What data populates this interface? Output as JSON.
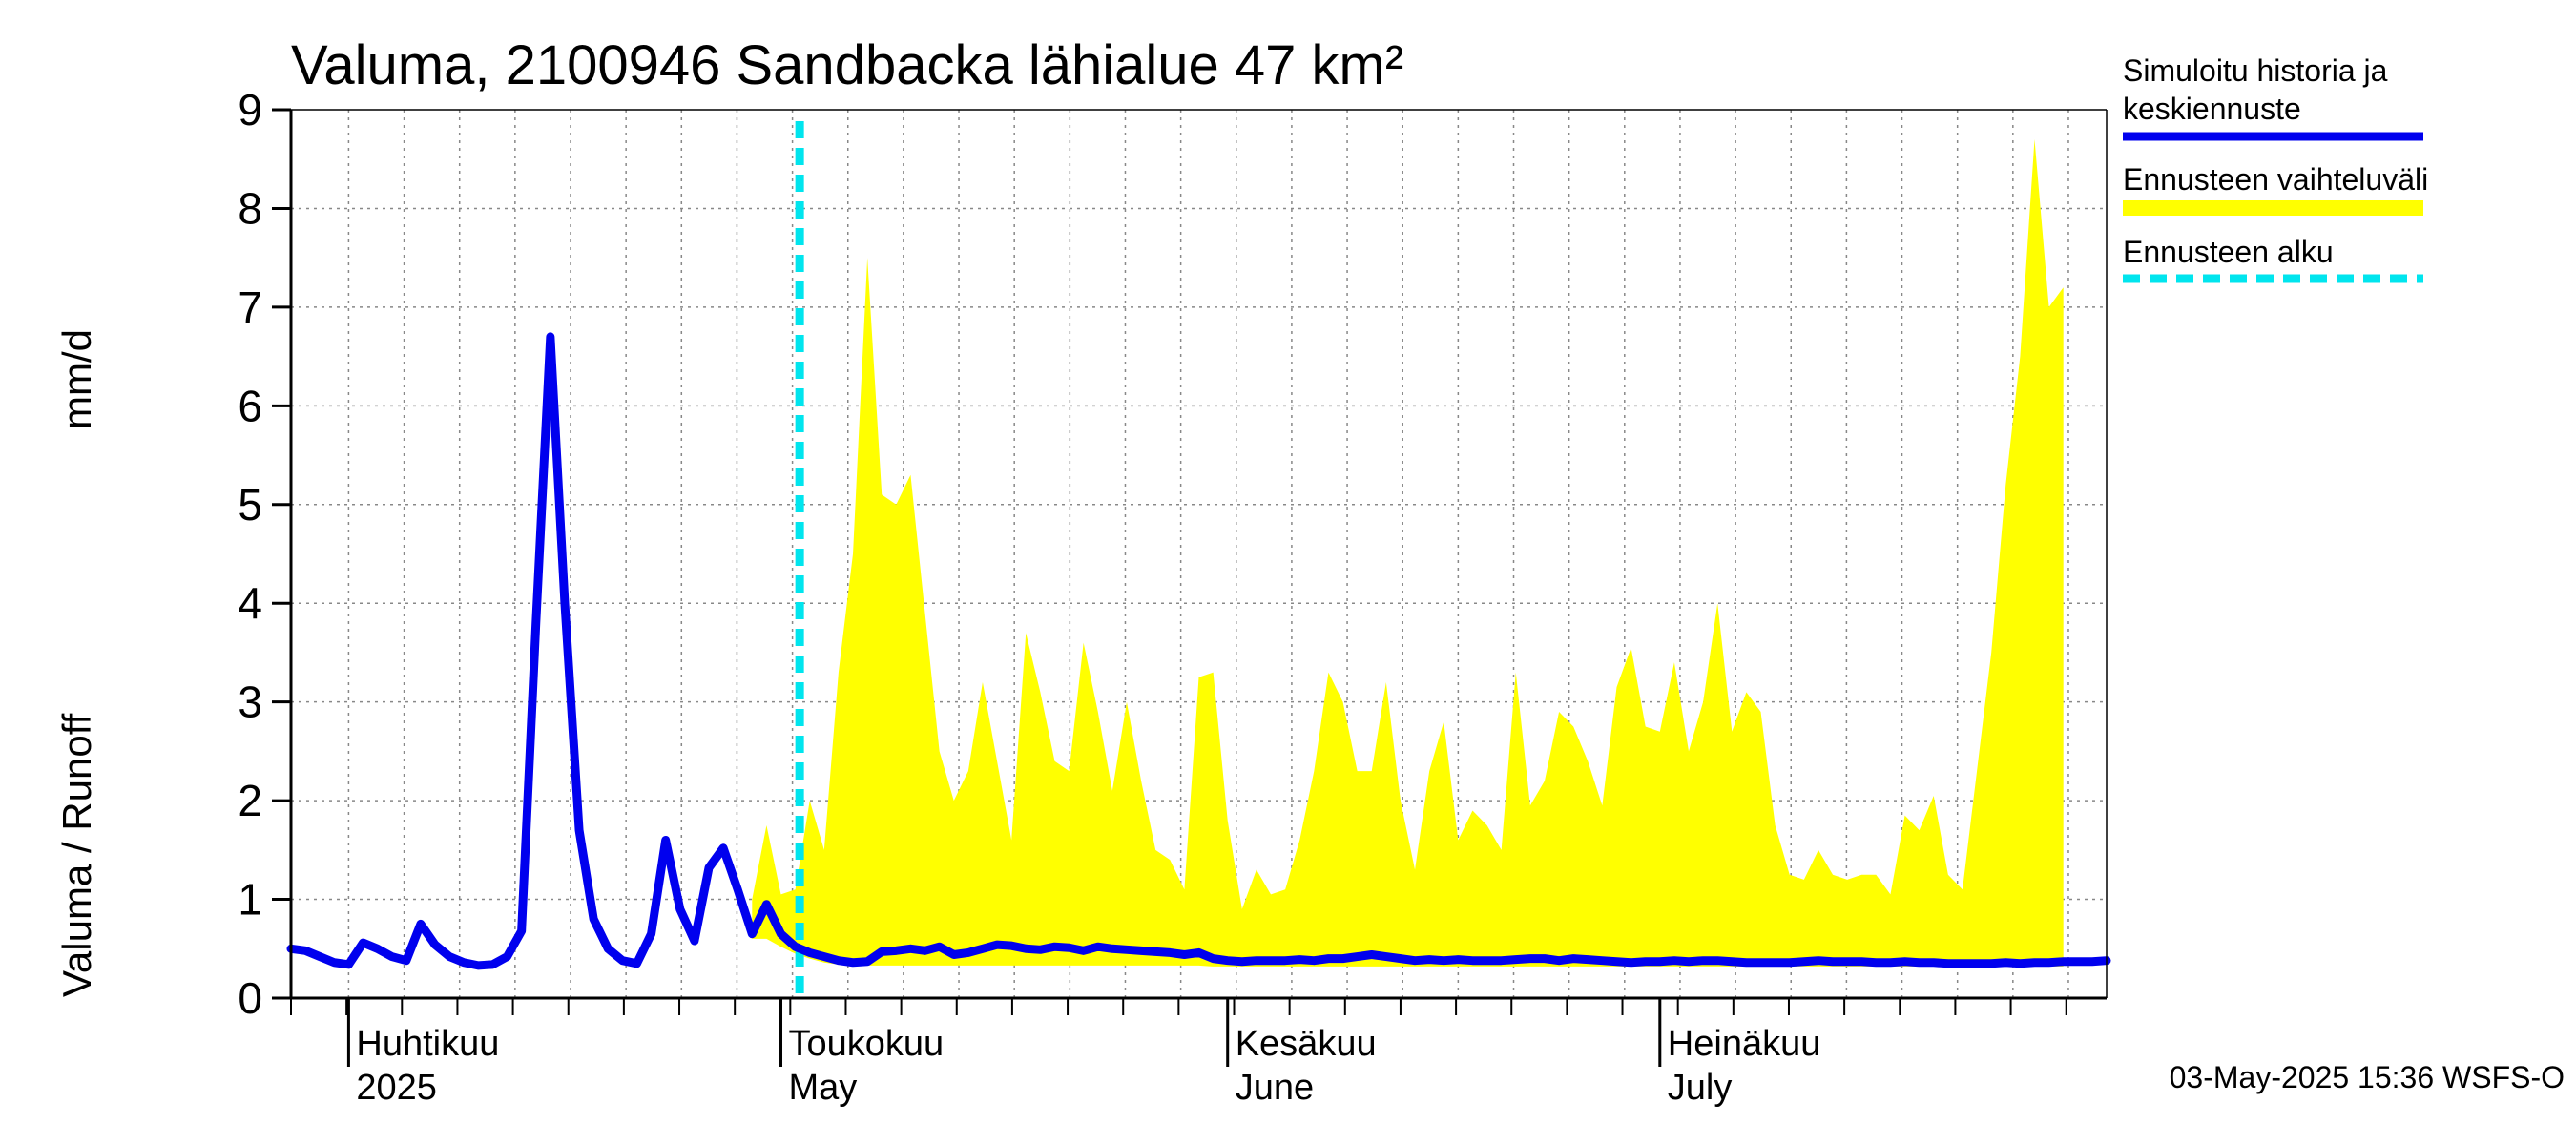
{
  "chart_data": {
    "type": "area",
    "title": "Valuma, 2100946 Sandbacka lähialue 47 km²",
    "ylabel_left": "Valuma / Runoff",
    "ylabel_right": "mm/d",
    "ylim": [
      0,
      9
    ],
    "yticks": [
      "0",
      "1",
      "2",
      "3",
      "4",
      "5",
      "6",
      "7",
      "8",
      "9"
    ],
    "x_range_days": [
      0,
      126
    ],
    "x_start_date": "2025-03-28",
    "months": [
      {
        "day": 4,
        "line1": "Huhtikuu",
        "line2": "2025"
      },
      {
        "day": 34,
        "line1": "Toukokuu",
        "line2": "May"
      },
      {
        "day": 65,
        "line1": "Kesäkuu",
        "line2": "June"
      },
      {
        "day": 95,
        "line1": "Heinäkuu",
        "line2": "July"
      }
    ],
    "forecast_start_day": 35.3,
    "simulated": {
      "name": "Simuloitu historia ja keskiennuste",
      "color": "#0000ee",
      "points": [
        [
          0,
          0.5
        ],
        [
          1,
          0.48
        ],
        [
          2,
          0.42
        ],
        [
          3,
          0.36
        ],
        [
          4,
          0.34
        ],
        [
          5,
          0.56
        ],
        [
          6,
          0.5
        ],
        [
          7,
          0.42
        ],
        [
          8,
          0.38
        ],
        [
          9,
          0.75
        ],
        [
          10,
          0.54
        ],
        [
          11,
          0.42
        ],
        [
          12,
          0.36
        ],
        [
          13,
          0.33
        ],
        [
          14,
          0.34
        ],
        [
          15,
          0.42
        ],
        [
          16,
          0.68
        ],
        [
          17,
          3.8
        ],
        [
          18,
          6.7
        ],
        [
          19,
          4.0
        ],
        [
          20,
          1.7
        ],
        [
          21,
          0.8
        ],
        [
          22,
          0.5
        ],
        [
          23,
          0.38
        ],
        [
          24,
          0.35
        ],
        [
          25,
          0.65
        ],
        [
          26,
          1.6
        ],
        [
          27,
          0.9
        ],
        [
          28,
          0.58
        ],
        [
          29,
          1.32
        ],
        [
          30,
          1.52
        ],
        [
          31,
          1.1
        ],
        [
          32,
          0.65
        ],
        [
          33,
          0.95
        ],
        [
          34,
          0.65
        ],
        [
          35,
          0.52
        ],
        [
          36,
          0.46
        ],
        [
          37,
          0.42
        ],
        [
          38,
          0.38
        ],
        [
          39,
          0.36
        ],
        [
          40,
          0.37
        ],
        [
          41,
          0.47
        ],
        [
          42,
          0.48
        ],
        [
          43,
          0.5
        ],
        [
          44,
          0.48
        ],
        [
          45,
          0.52
        ],
        [
          46,
          0.44
        ],
        [
          47,
          0.46
        ],
        [
          48,
          0.5
        ],
        [
          49,
          0.54
        ],
        [
          50,
          0.53
        ],
        [
          51,
          0.5
        ],
        [
          52,
          0.49
        ],
        [
          53,
          0.52
        ],
        [
          54,
          0.51
        ],
        [
          55,
          0.48
        ],
        [
          56,
          0.52
        ],
        [
          57,
          0.5
        ],
        [
          58,
          0.49
        ],
        [
          59,
          0.48
        ],
        [
          60,
          0.47
        ],
        [
          61,
          0.46
        ],
        [
          62,
          0.44
        ],
        [
          63,
          0.46
        ],
        [
          64,
          0.4
        ],
        [
          65,
          0.38
        ],
        [
          66,
          0.37
        ],
        [
          67,
          0.38
        ],
        [
          68,
          0.38
        ],
        [
          69,
          0.38
        ],
        [
          70,
          0.39
        ],
        [
          71,
          0.38
        ],
        [
          72,
          0.4
        ],
        [
          73,
          0.4
        ],
        [
          74,
          0.42
        ],
        [
          75,
          0.44
        ],
        [
          76,
          0.42
        ],
        [
          77,
          0.4
        ],
        [
          78,
          0.38
        ],
        [
          79,
          0.39
        ],
        [
          80,
          0.38
        ],
        [
          81,
          0.39
        ],
        [
          82,
          0.38
        ],
        [
          83,
          0.38
        ],
        [
          84,
          0.38
        ],
        [
          85,
          0.39
        ],
        [
          86,
          0.4
        ],
        [
          87,
          0.4
        ],
        [
          88,
          0.38
        ],
        [
          89,
          0.4
        ],
        [
          90,
          0.39
        ],
        [
          91,
          0.38
        ],
        [
          92,
          0.37
        ],
        [
          93,
          0.36
        ],
        [
          94,
          0.37
        ],
        [
          95,
          0.37
        ],
        [
          96,
          0.38
        ],
        [
          97,
          0.37
        ],
        [
          98,
          0.38
        ],
        [
          99,
          0.38
        ],
        [
          100,
          0.37
        ],
        [
          101,
          0.36
        ],
        [
          102,
          0.36
        ],
        [
          103,
          0.36
        ],
        [
          104,
          0.36
        ],
        [
          105,
          0.37
        ],
        [
          106,
          0.38
        ],
        [
          107,
          0.37
        ],
        [
          108,
          0.37
        ],
        [
          109,
          0.37
        ],
        [
          110,
          0.36
        ],
        [
          111,
          0.36
        ],
        [
          112,
          0.37
        ],
        [
          113,
          0.36
        ],
        [
          114,
          0.36
        ],
        [
          115,
          0.35
        ],
        [
          116,
          0.35
        ],
        [
          117,
          0.35
        ],
        [
          118,
          0.35
        ],
        [
          119,
          0.36
        ],
        [
          120,
          0.35
        ],
        [
          121,
          0.36
        ],
        [
          122,
          0.36
        ],
        [
          123,
          0.37
        ],
        [
          124,
          0.37
        ],
        [
          125,
          0.37
        ],
        [
          126,
          0.38
        ]
      ]
    },
    "range": {
      "name": "Ennusteen vaihteluväli",
      "color": "#ffff00",
      "upper": [
        [
          32,
          1.0
        ],
        [
          33,
          1.75
        ],
        [
          34,
          1.05
        ],
        [
          35,
          1.1
        ],
        [
          36,
          2.0
        ],
        [
          37,
          1.5
        ],
        [
          38,
          3.3
        ],
        [
          39,
          4.5
        ],
        [
          40,
          7.5
        ],
        [
          41,
          5.1
        ],
        [
          42,
          5.0
        ],
        [
          43,
          5.3
        ],
        [
          44,
          3.9
        ],
        [
          45,
          2.5
        ],
        [
          46,
          2.0
        ],
        [
          47,
          2.3
        ],
        [
          48,
          3.2
        ],
        [
          49,
          2.4
        ],
        [
          50,
          1.6
        ],
        [
          51,
          3.7
        ],
        [
          52,
          3.1
        ],
        [
          53,
          2.4
        ],
        [
          54,
          2.3
        ],
        [
          55,
          3.6
        ],
        [
          56,
          2.9
        ],
        [
          57,
          2.1
        ],
        [
          58,
          3.0
        ],
        [
          59,
          2.2
        ],
        [
          60,
          1.5
        ],
        [
          61,
          1.4
        ],
        [
          62,
          1.1
        ],
        [
          63,
          3.25
        ],
        [
          64,
          3.3
        ],
        [
          65,
          1.8
        ],
        [
          66,
          0.9
        ],
        [
          67,
          1.3
        ],
        [
          68,
          1.05
        ],
        [
          69,
          1.1
        ],
        [
          70,
          1.6
        ],
        [
          71,
          2.3
        ],
        [
          72,
          3.3
        ],
        [
          73,
          3.0
        ],
        [
          74,
          2.3
        ],
        [
          75,
          2.3
        ],
        [
          76,
          3.2
        ],
        [
          77,
          2.0
        ],
        [
          78,
          1.3
        ],
        [
          79,
          2.3
        ],
        [
          80,
          2.8
        ],
        [
          81,
          1.6
        ],
        [
          82,
          1.9
        ],
        [
          83,
          1.75
        ],
        [
          84,
          1.5
        ],
        [
          85,
          3.3
        ],
        [
          86,
          1.95
        ],
        [
          87,
          2.2
        ],
        [
          88,
          2.9
        ],
        [
          89,
          2.75
        ],
        [
          90,
          2.4
        ],
        [
          91,
          1.95
        ],
        [
          92,
          3.15
        ],
        [
          93,
          3.55
        ],
        [
          94,
          2.75
        ],
        [
          95,
          2.7
        ],
        [
          96,
          3.4
        ],
        [
          97,
          2.5
        ],
        [
          98,
          3.0
        ],
        [
          99,
          4.0
        ],
        [
          100,
          2.7
        ],
        [
          101,
          3.1
        ],
        [
          102,
          2.9
        ],
        [
          103,
          1.75
        ],
        [
          104,
          1.25
        ],
        [
          105,
          1.2
        ],
        [
          106,
          1.5
        ],
        [
          107,
          1.25
        ],
        [
          108,
          1.2
        ],
        [
          109,
          1.25
        ],
        [
          110,
          1.25
        ],
        [
          111,
          1.05
        ],
        [
          112,
          1.85
        ],
        [
          113,
          1.7
        ],
        [
          114,
          2.05
        ],
        [
          115,
          1.25
        ],
        [
          116,
          1.1
        ],
        [
          117,
          2.3
        ],
        [
          118,
          3.5
        ],
        [
          119,
          5.2
        ],
        [
          120,
          6.5
        ],
        [
          121,
          8.7
        ],
        [
          122,
          7.0
        ],
        [
          123,
          7.2
        ]
      ],
      "lower": [
        [
          32,
          0.6
        ],
        [
          33,
          0.6
        ],
        [
          34,
          0.52
        ],
        [
          35,
          0.45
        ],
        [
          36,
          0.4
        ],
        [
          37,
          0.36
        ],
        [
          38,
          0.34
        ],
        [
          39,
          0.33
        ],
        [
          40,
          0.33
        ],
        [
          41,
          0.33
        ],
        [
          42,
          0.33
        ],
        [
          43,
          0.33
        ],
        [
          44,
          0.33
        ],
        [
          45,
          0.33
        ],
        [
          46,
          0.33
        ],
        [
          47,
          0.33
        ],
        [
          48,
          0.33
        ],
        [
          49,
          0.33
        ],
        [
          50,
          0.33
        ],
        [
          51,
          0.33
        ],
        [
          52,
          0.33
        ],
        [
          53,
          0.33
        ],
        [
          54,
          0.33
        ],
        [
          55,
          0.33
        ],
        [
          56,
          0.33
        ],
        [
          57,
          0.33
        ],
        [
          58,
          0.33
        ],
        [
          59,
          0.33
        ],
        [
          60,
          0.33
        ],
        [
          61,
          0.33
        ],
        [
          62,
          0.33
        ],
        [
          63,
          0.33
        ],
        [
          64,
          0.32
        ],
        [
          65,
          0.32
        ],
        [
          66,
          0.32
        ],
        [
          67,
          0.32
        ],
        [
          68,
          0.32
        ],
        [
          69,
          0.32
        ],
        [
          70,
          0.32
        ],
        [
          71,
          0.32
        ],
        [
          72,
          0.32
        ],
        [
          73,
          0.32
        ],
        [
          74,
          0.32
        ],
        [
          75,
          0.32
        ],
        [
          76,
          0.32
        ],
        [
          77,
          0.32
        ],
        [
          78,
          0.32
        ],
        [
          79,
          0.32
        ],
        [
          80,
          0.32
        ],
        [
          81,
          0.32
        ],
        [
          82,
          0.32
        ],
        [
          83,
          0.32
        ],
        [
          84,
          0.32
        ],
        [
          85,
          0.32
        ],
        [
          86,
          0.32
        ],
        [
          87,
          0.32
        ],
        [
          88,
          0.32
        ],
        [
          89,
          0.32
        ],
        [
          90,
          0.32
        ],
        [
          91,
          0.32
        ],
        [
          92,
          0.32
        ],
        [
          93,
          0.32
        ],
        [
          94,
          0.32
        ],
        [
          95,
          0.32
        ],
        [
          96,
          0.32
        ],
        [
          97,
          0.32
        ],
        [
          98,
          0.32
        ],
        [
          99,
          0.32
        ],
        [
          100,
          0.32
        ],
        [
          101,
          0.32
        ],
        [
          102,
          0.32
        ],
        [
          103,
          0.32
        ],
        [
          104,
          0.32
        ],
        [
          105,
          0.32
        ],
        [
          106,
          0.32
        ],
        [
          107,
          0.32
        ],
        [
          108,
          0.32
        ],
        [
          109,
          0.32
        ],
        [
          110,
          0.32
        ],
        [
          111,
          0.32
        ],
        [
          112,
          0.32
        ],
        [
          113,
          0.32
        ],
        [
          114,
          0.32
        ],
        [
          115,
          0.32
        ],
        [
          116,
          0.32
        ],
        [
          117,
          0.32
        ],
        [
          118,
          0.32
        ],
        [
          119,
          0.32
        ],
        [
          120,
          0.32
        ],
        [
          121,
          0.32
        ],
        [
          122,
          0.32
        ],
        [
          123,
          0.32
        ]
      ]
    },
    "forecast_start": {
      "name": "Ennusteen alku",
      "color": "#00e5ee"
    },
    "legend": {
      "position": "right",
      "items": [
        {
          "line1": "Simuloitu historia ja",
          "line2": "keskiennuste",
          "color": "#0000ee",
          "style": "solid"
        },
        {
          "line1": "Ennusteen vaihteluväli",
          "line2": "",
          "color": "#ffff00",
          "style": "band"
        },
        {
          "line1": "Ennusteen alku",
          "line2": "",
          "color": "#00e5ee",
          "style": "dashed"
        }
      ]
    },
    "footer": "03-May-2025 15:36 WSFS-O"
  }
}
